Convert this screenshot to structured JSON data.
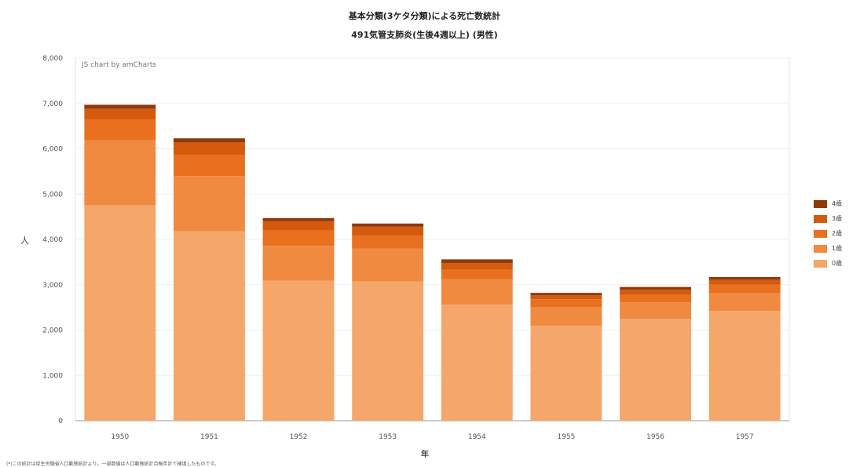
{
  "chart_data": {
    "type": "bar",
    "stacked": true,
    "title": "基本分類(3ケタ分類)による死亡数統計",
    "subtitle": "491気管支肺炎(生後4週以上) (男性)",
    "credit": "JS chart by amCharts",
    "xlabel": "年",
    "ylabel": "人",
    "ylim": [
      0,
      8000
    ],
    "ytick_step": 1000,
    "grid": true,
    "legend_position": "right",
    "categories": [
      "1950",
      "1951",
      "1952",
      "1953",
      "1954",
      "1955",
      "1956",
      "1957"
    ],
    "series": [
      {
        "name": "0歳",
        "color": "#F5A66A",
        "values": [
          4750,
          4180,
          3090,
          3070,
          2560,
          2090,
          2250,
          2420
        ]
      },
      {
        "name": "1歳",
        "color": "#F08A40",
        "values": [
          1440,
          1220,
          770,
          730,
          560,
          420,
          360,
          390
        ]
      },
      {
        "name": "2歳",
        "color": "#E8701F",
        "values": [
          460,
          470,
          340,
          280,
          210,
          170,
          170,
          190
        ]
      },
      {
        "name": "3歳",
        "color": "#D45A0E",
        "values": [
          230,
          270,
          200,
          200,
          150,
          90,
          110,
          110
        ]
      },
      {
        "name": "4歳",
        "color": "#8E3A0D",
        "values": [
          90,
          90,
          70,
          70,
          80,
          50,
          60,
          60
        ]
      }
    ],
    "footnote": "(*)この統計は厚生労働省人口動態統計より。一部数値は人口動態統計月報年計で補填したものです。"
  }
}
